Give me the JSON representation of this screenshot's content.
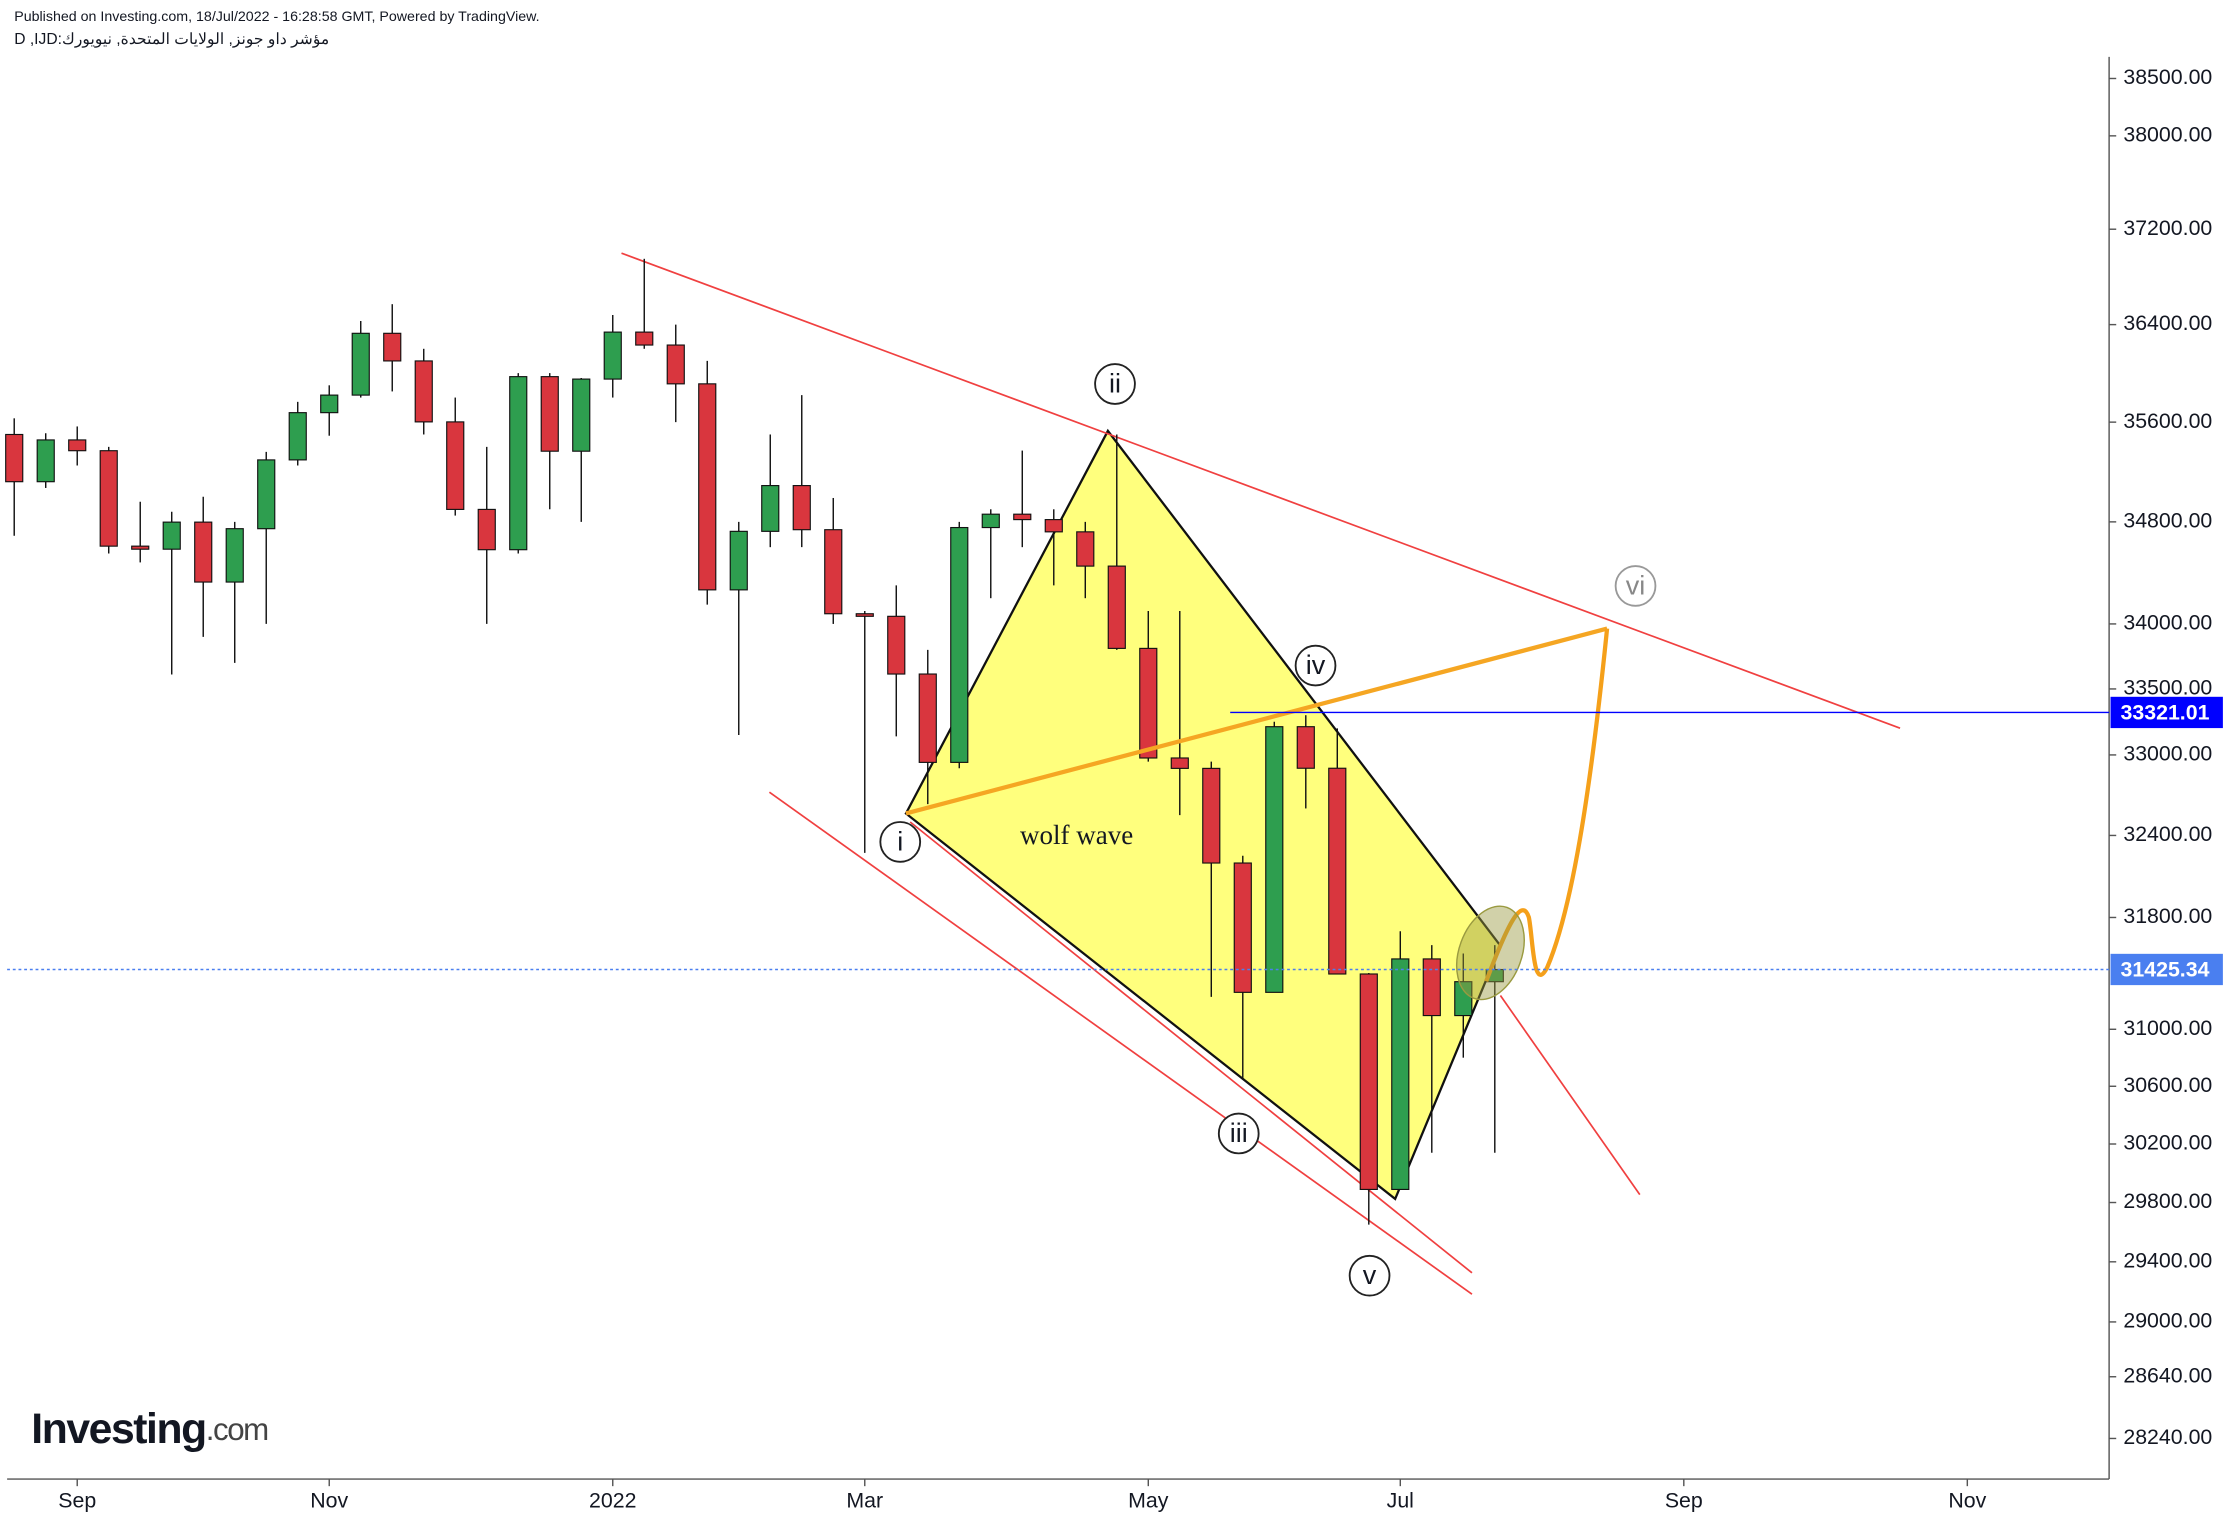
{
  "header": {
    "published": "Published on Investing.com, 18/Jul/2022 - 16:28:58 GMT, Powered by TradingView.",
    "symbol": "D ,IJD:مؤشر داو جونز, الولايات المتحدة, نيويورك"
  },
  "logo": {
    "brand": "Investing",
    "suffix": ".com"
  },
  "chart_data": {
    "type": "candlestick",
    "categories": [
      null,
      null,
      "Sep",
      null,
      null,
      null,
      null,
      null,
      null,
      null,
      "Nov",
      null,
      null,
      null,
      null,
      null,
      null,
      null,
      null,
      "2022",
      null,
      null,
      null,
      null,
      null,
      null,
      null,
      "Mar",
      null,
      null,
      null,
      null,
      null,
      null,
      null,
      null,
      "May",
      null,
      null,
      null,
      null,
      null,
      null,
      null,
      "Jul",
      null,
      null,
      null,
      null,
      null,
      null,
      null,
      null,
      "Sep",
      null,
      null,
      null,
      null,
      null,
      null,
      null,
      null,
      "Nov",
      null,
      null,
      null,
      null
    ],
    "open": [
      35500,
      35120,
      35456,
      35369,
      34608,
      34584,
      34798,
      34326,
      34746,
      35295,
      35677,
      35820,
      36328,
      36100,
      35602,
      34899,
      34580,
      35971,
      35365,
      35951,
      36338,
      36231,
      35912,
      34265,
      34725,
      35089,
      34738,
      34079,
      34059,
      33614,
      32944,
      34755,
      34861,
      34818,
      34721,
      34451,
      33811,
      32977,
      32899,
      32197,
      31262,
      33213,
      32900,
      31393,
      29889,
      31501,
      31097,
      31338,
      null,
      null,
      null,
      null,
      null,
      null,
      null,
      null,
      null,
      null,
      null,
      null,
      null,
      null,
      null,
      null,
      null,
      null,
      null
    ],
    "high": [
      35631,
      35510,
      35565,
      35400,
      34960,
      34880,
      35000,
      34800,
      35360,
      35765,
      35900,
      36430,
      36570,
      36200,
      35800,
      35400,
      36000,
      36000,
      35960,
      36480,
      36950,
      36400,
      36100,
      34800,
      35500,
      35820,
      34990,
      34100,
      34300,
      33800,
      34800,
      34900,
      35370,
      34900,
      34800,
      35500,
      34100,
      34100,
      32950,
      32250,
      33250,
      33300,
      33200,
      31400,
      31700,
      31600,
      31540,
      31600,
      null,
      null,
      null,
      null,
      null,
      null,
      null,
      null,
      null,
      null,
      null,
      null,
      null,
      null,
      null,
      null,
      null,
      null,
      null
    ],
    "low": [
      34690,
      35070,
      35250,
      34550,
      34480,
      33610,
      33900,
      33700,
      34000,
      35250,
      35490,
      35800,
      35850,
      35500,
      34850,
      34000,
      34550,
      34900,
      34800,
      35800,
      36200,
      35600,
      34150,
      33150,
      34600,
      34600,
      34000,
      32272,
      33140,
      32632,
      32900,
      34200,
      34600,
      34300,
      34200,
      33800,
      32950,
      32550,
      31230,
      30650,
      31300,
      32600,
      31390,
      29650,
      29900,
      30140,
      30800,
      30140,
      null,
      null,
      null,
      null,
      null,
      null,
      null,
      null,
      null,
      null,
      null,
      null,
      null,
      null,
      null,
      null,
      null,
      null,
      null
    ],
    "close": [
      35120,
      35456,
      35369,
      34608,
      34584,
      34798,
      34326,
      34746,
      35295,
      35677,
      35820,
      36328,
      36100,
      35602,
      34899,
      34580,
      35971,
      35365,
      35951,
      36338,
      36231,
      35912,
      34265,
      34725,
      35089,
      34738,
      34079,
      34059,
      33614,
      32944,
      34755,
      34861,
      34818,
      34721,
      34451,
      33811,
      32977,
      32899,
      32197,
      31262,
      33213,
      32900,
      31393,
      29889,
      31501,
      31097,
      31338,
      31425,
      null,
      null,
      null,
      null,
      null,
      null,
      null,
      null,
      null,
      null,
      null,
      null,
      null,
      null,
      null,
      null,
      null,
      null,
      null
    ],
    "up_color": "#2e9e4f",
    "down_color": "#d9363e",
    "log_scale": true,
    "ylim": [
      27980,
      38690
    ],
    "yticks": [
      {
        "value": 38500,
        "label": "38500.00"
      },
      {
        "value": 38000,
        "label": "38000.00"
      },
      {
        "value": 37200,
        "label": "37200.00"
      },
      {
        "value": 36400,
        "label": "36400.00"
      },
      {
        "value": 35600,
        "label": "35600.00"
      },
      {
        "value": 34800,
        "label": "34800.00"
      },
      {
        "value": 34000,
        "label": "34000.00"
      },
      {
        "value": 33500,
        "label": "33500.00"
      },
      {
        "value": 33000,
        "label": "33000.00"
      },
      {
        "value": 32400,
        "label": "32400.00"
      },
      {
        "value": 31800,
        "label": "31800.00"
      },
      {
        "value": 31000,
        "label": "31000.00"
      },
      {
        "value": 30600,
        "label": "30600.00"
      },
      {
        "value": 30200,
        "label": "30200.00"
      },
      {
        "value": 29800,
        "label": "29800.00"
      },
      {
        "value": 29400,
        "label": "29400.00"
      },
      {
        "value": 29000,
        "label": "29000.00"
      },
      {
        "value": 28640,
        "label": "28640.00"
      },
      {
        "value": 28240,
        "label": "28240.00"
      }
    ],
    "price_lines": [
      {
        "value": 33321.01,
        "color": "#0000ff"
      },
      {
        "value": 31425.34,
        "color": "#4a7ff0"
      }
    ],
    "wave_labels": [
      "i",
      "ii",
      "iii",
      "iv",
      "v",
      "vi"
    ],
    "annotation": "wolf wave"
  }
}
